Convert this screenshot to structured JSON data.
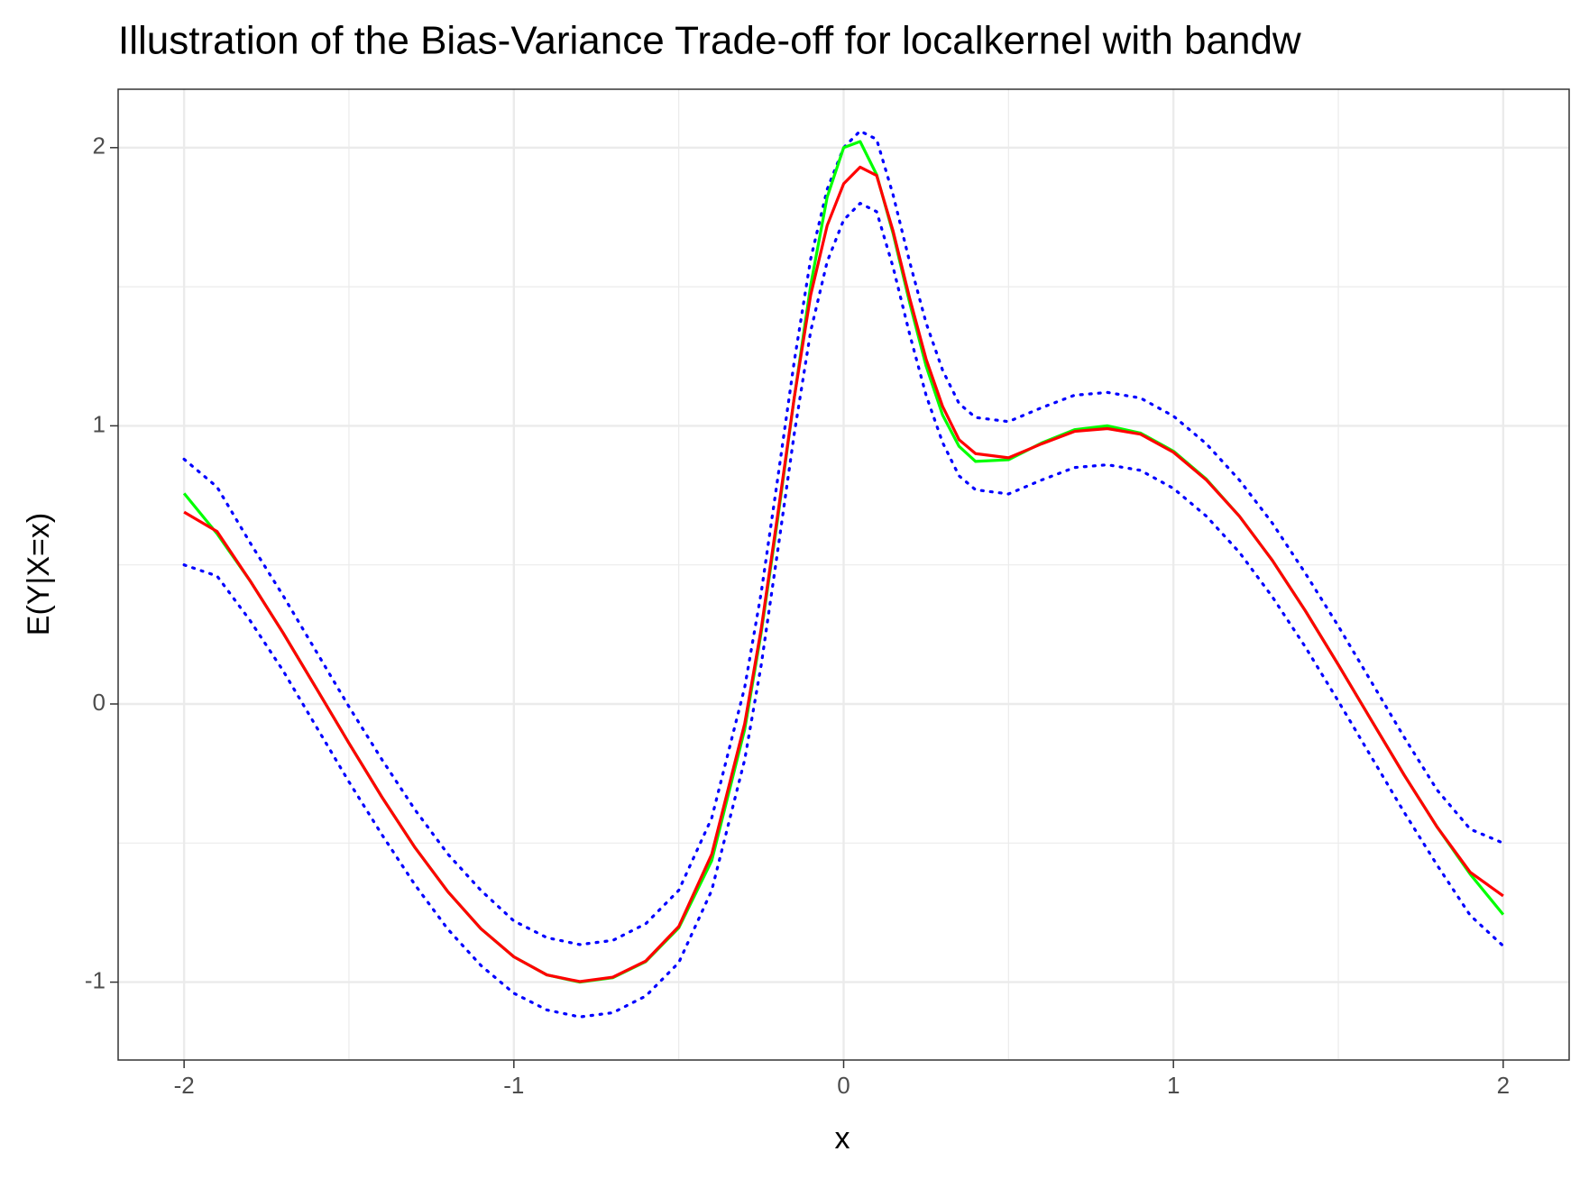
{
  "chart_data": {
    "type": "line",
    "title": "Illustration of the Bias-Variance Trade-off for localkernel  with bandw",
    "xlabel": "x",
    "ylabel": "E(Y|X=x)",
    "x": [
      -2,
      -1.9,
      -1.8,
      -1.7,
      -1.6,
      -1.5,
      -1.4,
      -1.3,
      -1.2,
      -1.1,
      -1,
      -0.9,
      -0.8,
      -0.7,
      -0.6,
      -0.5,
      -0.4,
      -0.3,
      -0.25,
      -0.2,
      -0.15,
      -0.1,
      -0.05,
      0,
      0.05,
      0.1,
      0.15,
      0.2,
      0.25,
      0.3,
      0.35,
      0.4,
      0.5,
      0.6,
      0.7,
      0.8,
      0.9,
      1,
      1.1,
      1.2,
      1.3,
      1.4,
      1.5,
      1.6,
      1.7,
      1.8,
      1.9,
      2
    ],
    "series": [
      {
        "color": "#0000ff",
        "linestyle": "dotted",
        "values": [
          0.88,
          0.78,
          0.58,
          0.39,
          0.19,
          -0.01,
          -0.2,
          -0.38,
          -0.54,
          -0.67,
          -0.78,
          -0.84,
          -0.865,
          -0.85,
          -0.79,
          -0.67,
          -0.41,
          0.06,
          0.4,
          0.81,
          1.23,
          1.6,
          1.85,
          2.0,
          2.06,
          2.03,
          1.83,
          1.59,
          1.37,
          1.2,
          1.08,
          1.03,
          1.015,
          1.065,
          1.11,
          1.12,
          1.1,
          1.035,
          0.935,
          0.805,
          0.65,
          0.47,
          0.28,
          0.08,
          -0.12,
          -0.31,
          -0.45,
          -0.5
        ]
      },
      {
        "color": "#0000ff",
        "linestyle": "dotted",
        "values": [
          0.5,
          0.46,
          0.3,
          0.12,
          -0.08,
          -0.28,
          -0.47,
          -0.65,
          -0.81,
          -0.94,
          -1.04,
          -1.1,
          -1.125,
          -1.11,
          -1.05,
          -0.93,
          -0.67,
          -0.2,
          0.14,
          0.55,
          0.97,
          1.34,
          1.59,
          1.74,
          1.8,
          1.77,
          1.57,
          1.33,
          1.11,
          0.94,
          0.82,
          0.77,
          0.755,
          0.805,
          0.85,
          0.86,
          0.84,
          0.775,
          0.675,
          0.545,
          0.385,
          0.205,
          0.01,
          -0.19,
          -0.39,
          -0.58,
          -0.76,
          -0.87
        ]
      },
      {
        "color": "#00ff00",
        "linestyle": "solid",
        "values": [
          0.757,
          0.612,
          0.443,
          0.256,
          0.058,
          -0.141,
          -0.335,
          -0.516,
          -0.675,
          -0.808,
          -0.909,
          -0.974,
          -1.0,
          -0.984,
          -0.926,
          -0.805,
          -0.563,
          -0.091,
          0.257,
          0.665,
          1.099,
          1.505,
          1.822,
          2.0,
          2.022,
          1.903,
          1.691,
          1.443,
          1.215,
          1.039,
          0.926,
          0.872,
          0.878,
          0.938,
          0.986,
          1.0,
          0.974,
          0.909,
          0.808,
          0.675,
          0.516,
          0.335,
          0.141,
          -0.058,
          -0.256,
          -0.443,
          -0.612,
          -0.757
        ]
      },
      {
        "color": "#ff0000",
        "linestyle": "solid",
        "values": [
          0.69,
          0.62,
          0.443,
          0.256,
          0.058,
          -0.141,
          -0.335,
          -0.516,
          -0.675,
          -0.808,
          -0.909,
          -0.974,
          -0.998,
          -0.982,
          -0.924,
          -0.8,
          -0.54,
          -0.07,
          0.27,
          0.68,
          1.1,
          1.47,
          1.72,
          1.87,
          1.93,
          1.9,
          1.7,
          1.46,
          1.24,
          1.07,
          0.95,
          0.9,
          0.885,
          0.935,
          0.98,
          0.99,
          0.97,
          0.905,
          0.805,
          0.675,
          0.516,
          0.335,
          0.141,
          -0.058,
          -0.256,
          -0.443,
          -0.605,
          -0.69
        ]
      }
    ],
    "xlim": [
      -2.2,
      2.2
    ],
    "ylim": [
      -1.28,
      2.21
    ],
    "xticks": [
      -2,
      -1,
      0,
      1,
      2
    ],
    "yticks": [
      -1,
      0,
      1,
      2
    ],
    "x_minor_ticks": [
      -1.5,
      -0.5,
      0.5,
      1.5
    ],
    "y_minor_ticks": [
      -0.5,
      0.5,
      1.5
    ],
    "grid": true
  }
}
